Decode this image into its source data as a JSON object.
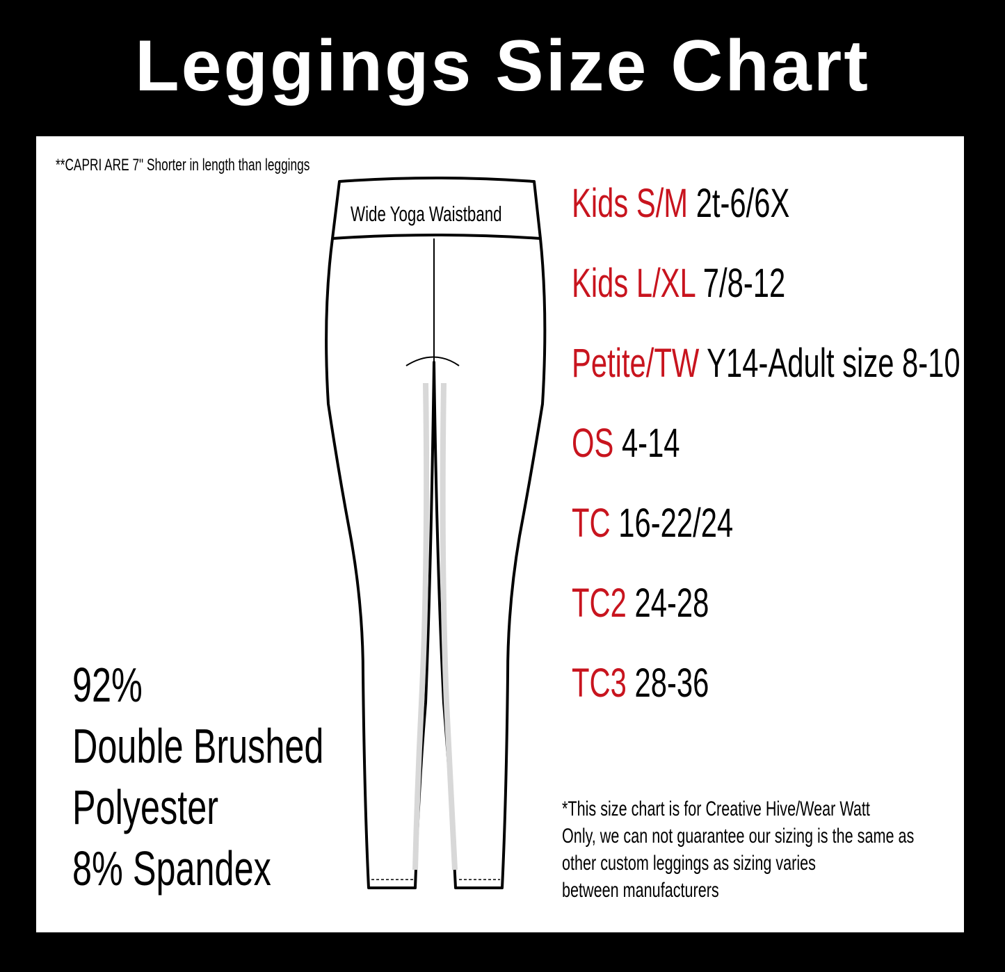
{
  "title": "Leggings Size Chart",
  "capri_note": "**CAPRI ARE 7\" Shorter in length than leggings",
  "waistband_label": "Wide Yoga Waistband",
  "sizes": [
    {
      "label": "Kids S/M",
      "range": "2t-6/6X"
    },
    {
      "label": "Kids L/XL",
      "range": "7/8-12"
    },
    {
      "label": "Petite/TW",
      "range": "Y14-Adult size 8-10"
    },
    {
      "label": "OS",
      "range": "4-14"
    },
    {
      "label": "TC",
      "range": "16-22/24"
    },
    {
      "label": "TC2",
      "range": "24-28"
    },
    {
      "label": "TC3",
      "range": "28-36"
    }
  ],
  "fabric": [
    "92%",
    "Double Brushed",
    "Polyester",
    "8% Spandex"
  ],
  "disclaimer": [
    "*This size chart is for Creative Hive/Wear Watt",
    "Only, we can not guarantee our sizing is the same as",
    "other custom leggings as sizing varies",
    "between manufacturers"
  ],
  "colors": {
    "background": "#000000",
    "panel": "#ffffff",
    "size_label": "#c8141e",
    "text": "#000000"
  }
}
